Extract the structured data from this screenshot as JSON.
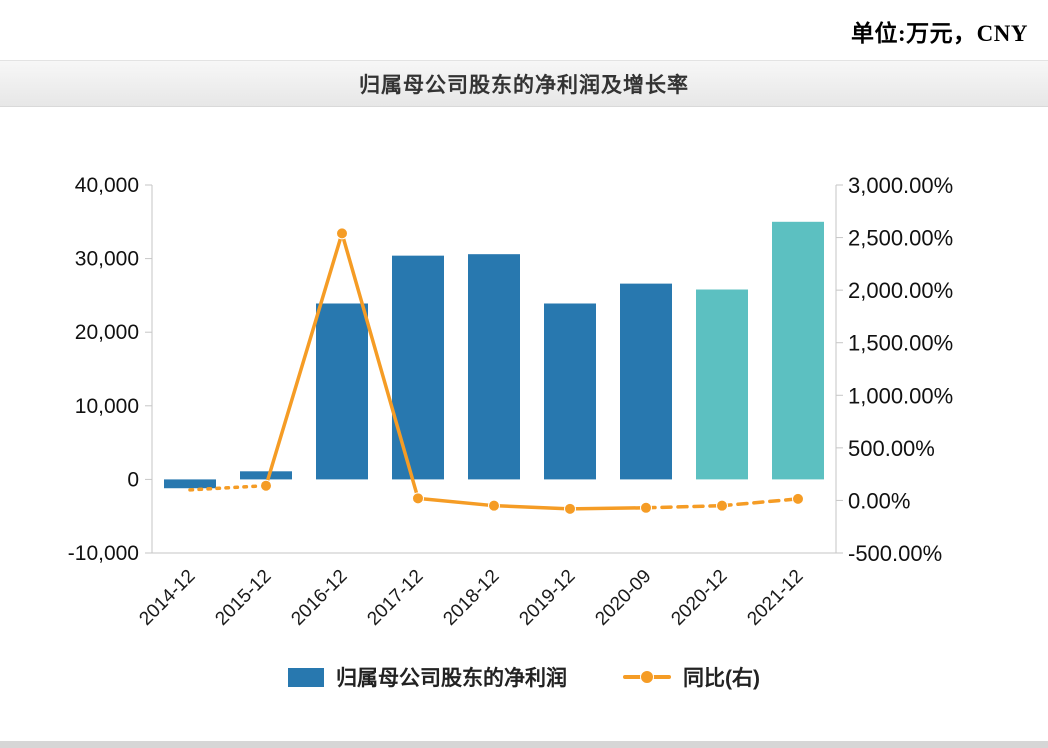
{
  "page": {
    "unit_note": "单位:万元，CNY"
  },
  "header": {
    "title": "归属母公司股东的净利润及增长率"
  },
  "colors": {
    "bar_blue": "#2878af",
    "bar_teal": "#5cc0c1",
    "line_orange": "#f59c25",
    "axis_line": "#c6c6c6",
    "text": "#1a1a1a"
  },
  "legend": {
    "items": [
      {
        "label": "归属母公司股东的净利润",
        "type": "bar"
      },
      {
        "label": "同比(右)",
        "type": "line"
      }
    ]
  },
  "chart_data": {
    "type": "bar+line",
    "title": "归属母公司股东的净利润及增长率",
    "unit_note": "单位:万元，CNY",
    "categories": [
      "2014-12",
      "2015-12",
      "2016-12",
      "2017-12",
      "2018-12",
      "2019-12",
      "2020-09",
      "2020-12",
      "2021-12"
    ],
    "series": [
      {
        "name": "归属母公司股东的净利润",
        "type": "bar",
        "axis": "left",
        "unit": "万元",
        "values": [
          -1200,
          1100,
          23900,
          30400,
          30600,
          23900,
          26600,
          25800,
          35000
        ],
        "bar_colors": [
          "#2878af",
          "#2878af",
          "#2878af",
          "#2878af",
          "#2878af",
          "#2878af",
          "#2878af",
          "#5cc0c1",
          "#5cc0c1"
        ]
      },
      {
        "name": "同比(右)",
        "type": "line",
        "axis": "right",
        "unit": "%",
        "values": [
          100,
          140,
          2540,
          20,
          -50,
          -80,
          -70,
          -50,
          15
        ],
        "segment_styles": [
          "dotted",
          "solid",
          "solid",
          "solid",
          "solid",
          "solid",
          "dashed",
          "dashed"
        ]
      }
    ],
    "left_axis": {
      "min": -10000,
      "max": 40000,
      "tick_values": [
        40000,
        30000,
        20000,
        10000,
        0,
        -10000
      ],
      "tick_labels": [
        "40,000",
        "30,000",
        "20,000",
        "10,000",
        "0",
        "-10,000"
      ]
    },
    "right_axis": {
      "min": -500,
      "max": 3000,
      "tick_values": [
        3000,
        2500,
        2000,
        1500,
        1000,
        500,
        0,
        -500
      ],
      "tick_labels": [
        "3,000.00%",
        "2,500.00%",
        "2,000.00%",
        "1,500.00%",
        "1,000.00%",
        "500.00%",
        "0.00%",
        "-500.00%"
      ]
    },
    "grid": false,
    "legend_position": "bottom"
  }
}
